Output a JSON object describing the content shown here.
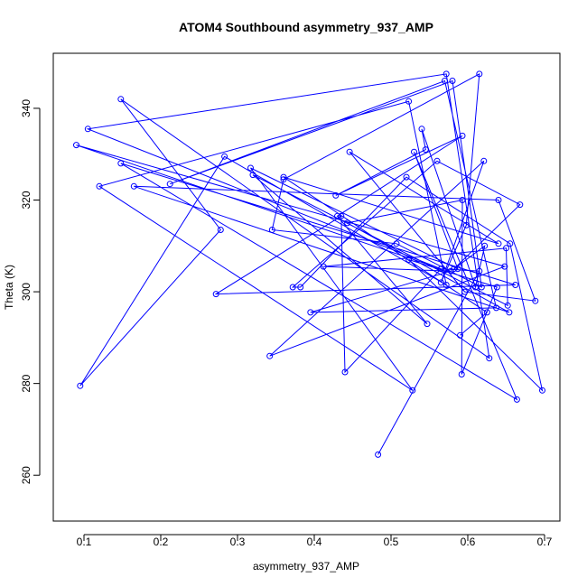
{
  "chart_data": {
    "type": "line",
    "title": "ATOM4 Southbound asymmetry_937_AMP",
    "xlabel": "asymmetry_937_AMP",
    "ylabel": "Theta (K)",
    "xlim": [
      0.06,
      0.72
    ],
    "ylim": [
      250,
      352
    ],
    "xticks": [
      0.1,
      0.2,
      0.3,
      0.4,
      0.5,
      0.6,
      0.7
    ],
    "xtick_labels": [
      "0.1",
      "0.2",
      "0.3",
      "0.4",
      "0.5",
      "0.6",
      "0.7"
    ],
    "yticks": [
      260,
      280,
      300,
      320,
      340
    ],
    "ytick_labels": [
      "260",
      "280",
      "300",
      "320",
      "340"
    ],
    "grid": false,
    "marker": "open-circle",
    "line_color": "#0000ff",
    "series": [
      {
        "x": [
          0.483,
          0.615,
          0.565,
          0.105,
          0.572,
          0.628,
          0.148,
          0.278,
          0.095,
          0.283,
          0.572,
          0.523,
          0.12,
          0.528,
          0.317,
          0.587,
          0.53,
          0.664,
          0.148,
          0.662,
          0.272,
          0.435,
          0.44,
          0.565,
          0.09,
          0.648,
          0.342,
          0.621,
          0.565,
          0.598,
          0.615,
          0.36,
          0.345,
          0.507,
          0.618,
          0.58,
          0.212,
          0.57,
          0.637,
          0.395,
          0.578,
          0.412,
          0.65,
          0.652,
          0.32,
          0.547,
          0.43,
          0.593,
          0.428,
          0.545,
          0.54,
          0.61,
          0.622,
          0.582,
          0.668,
          0.56,
          0.372,
          0.382,
          0.52,
          0.655,
          0.697,
          0.523,
          0.638,
          0.592,
          0.593,
          0.443,
          0.654,
          0.165,
          0.64,
          0.688,
          0.596,
          0.446,
          0.64,
          0.36,
          0.625,
          0.59
        ],
        "y": [
          264.5,
          304.5,
          305,
          335.5,
          347.5,
          285.5,
          342,
          313.5,
          279.5,
          329.5,
          301.5,
          341.5,
          323,
          278.5,
          327,
          305,
          330.5,
          276.5,
          328,
          301.5,
          299.5,
          316.5,
          282.5,
          305,
          332,
          305.5,
          286,
          328.5,
          302,
          314.5,
          347.5,
          324.5,
          313.5,
          310.5,
          301,
          346,
          323.5,
          346,
          296.5,
          295.5,
          304.5,
          305.5,
          309.5,
          297,
          325.5,
          293,
          316.5,
          334,
          321,
          331,
          335.5,
          301,
          310,
          305,
          319,
          328.5,
          301,
          301,
          325,
          310.5,
          278.5,
          307,
          301,
          282,
          320,
          315,
          295.5,
          323,
          320,
          298,
          300,
          330.5,
          310.5,
          325,
          295.5,
          290.5
        ]
      }
    ]
  }
}
